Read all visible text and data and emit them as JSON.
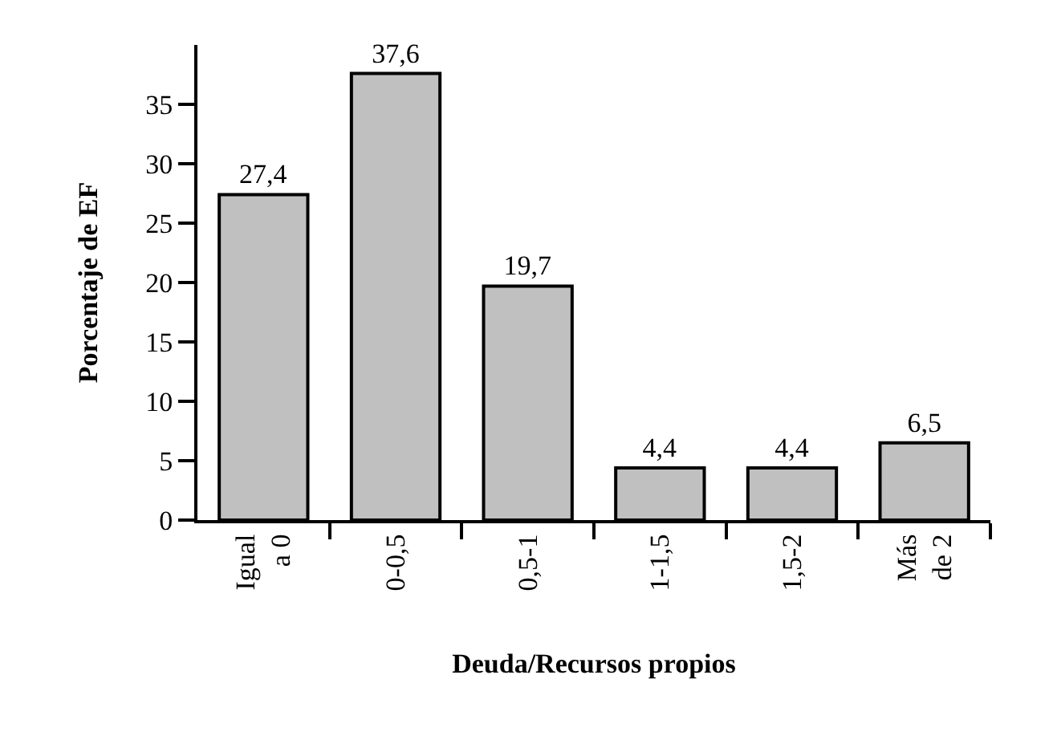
{
  "chart_data": {
    "type": "bar",
    "xlabel": "Deuda/Recursos propios",
    "ylabel": "Porcentaje de EF",
    "categories": [
      "Igual\na 0",
      "0-0,5",
      "0,5-1",
      "1-1,5",
      "1,5-2",
      "Más\nde 2"
    ],
    "values": [
      27.4,
      37.6,
      19.7,
      4.4,
      4.4,
      6.5
    ],
    "value_labels": [
      "27,4",
      "37,6",
      "19,7",
      "4,4",
      "4,4",
      "6,5"
    ],
    "color": "#c0c0c0",
    "ylim": [
      0,
      40
    ],
    "yticks": [
      0,
      5,
      10,
      15,
      20,
      25,
      30,
      35
    ],
    "grid": false
  }
}
